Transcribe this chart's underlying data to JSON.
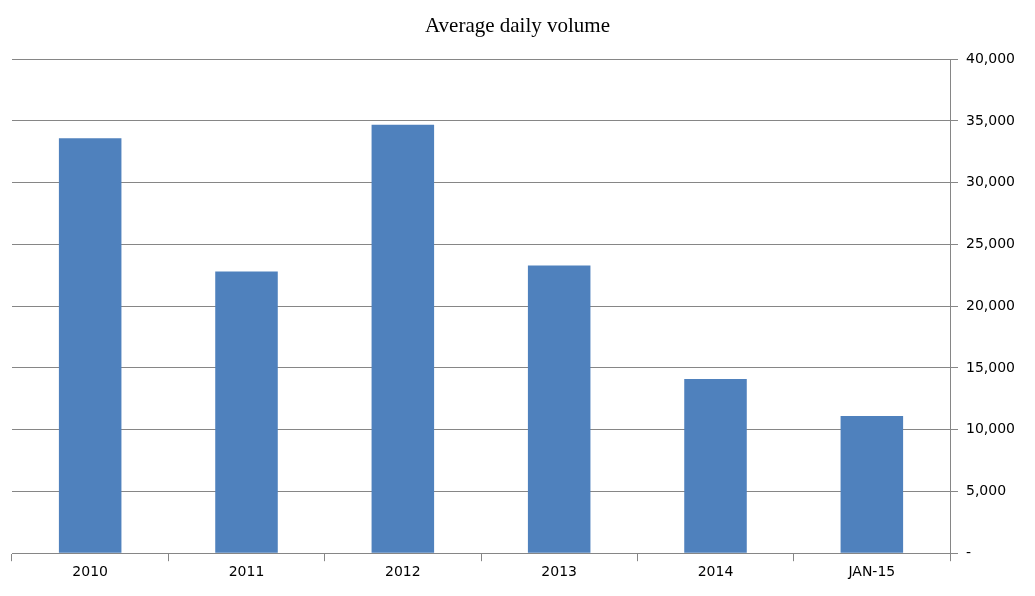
{
  "chart_data": {
    "type": "bar",
    "title": "Average daily volume",
    "categories": [
      "2010",
      "2011",
      "2012",
      "2013",
      "2014",
      "JAN-15"
    ],
    "values": [
      33600,
      22800,
      34700,
      23300,
      14100,
      11100
    ],
    "color": "#4f81bd",
    "ylim": [
      0,
      40000
    ],
    "yticks": [
      {
        "value": 0,
        "label": "-"
      },
      {
        "value": 5000,
        "label": "5,000"
      },
      {
        "value": 10000,
        "label": "10,000"
      },
      {
        "value": 15000,
        "label": "15,000"
      },
      {
        "value": 20000,
        "label": "20,000"
      },
      {
        "value": 25000,
        "label": "25,000"
      },
      {
        "value": 30000,
        "label": "30,000"
      },
      {
        "value": 35000,
        "label": "35,000"
      },
      {
        "value": 40000,
        "label": "40,000"
      }
    ],
    "grid": "y",
    "legend": false
  }
}
